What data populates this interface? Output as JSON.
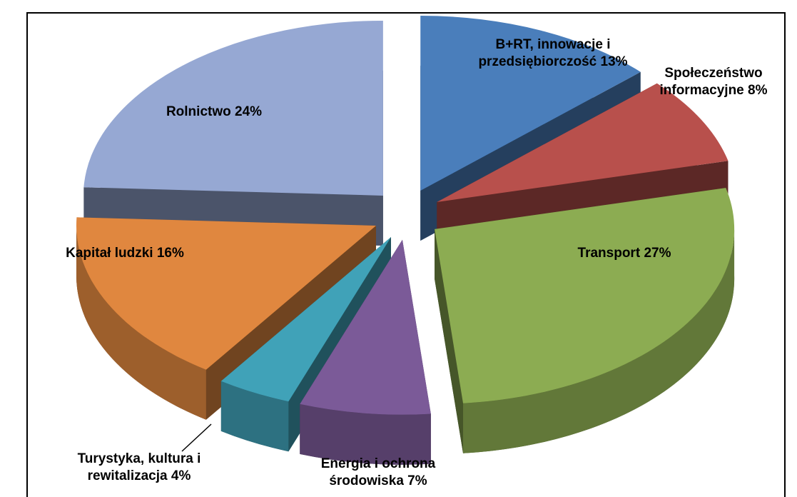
{
  "chart_data": {
    "type": "pie3d",
    "categories": [
      "B+RT, innowacje i przedsiębiorczość",
      "Społeczeństwo informacyjne",
      "Transport",
      "Energia i ochrona środowiska",
      "Turystyka, kultura i rewitalizacja",
      "Kapitał ludzki",
      "Rolnictwo"
    ],
    "values": [
      13,
      8,
      27,
      7,
      4,
      16,
      24
    ],
    "value_labels": [
      "13%",
      "8%",
      "27%",
      "7%",
      "4%",
      "16%",
      "24%"
    ],
    "colors": [
      "#4a7ebb",
      "#b8504c",
      "#8cac52",
      "#7b5a98",
      "#40a2b8",
      "#e0873f",
      "#96a8d3"
    ],
    "exploded": true
  }
}
